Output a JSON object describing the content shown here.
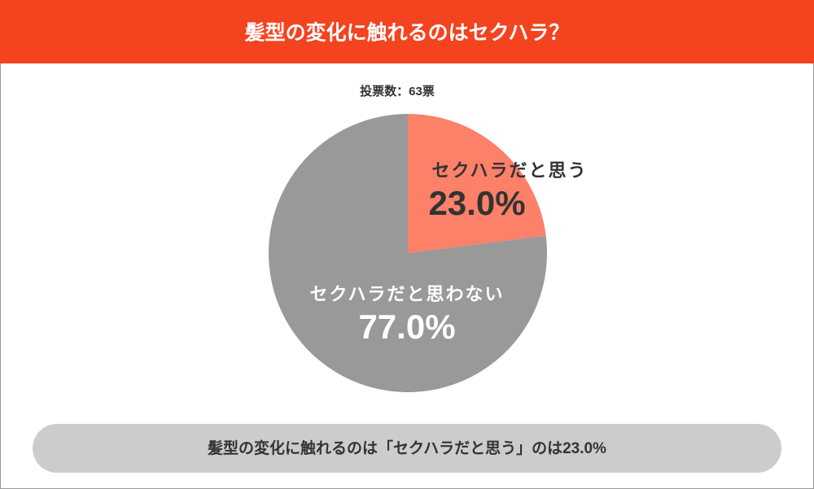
{
  "chart_data": {
    "type": "pie",
    "title": "髪型の変化に触れるのはセクハラ？",
    "subtitle": "投票数：63票",
    "categories": [
      "セクハラだと思う",
      "セクハラだと思わない"
    ],
    "values": [
      23.0,
      77.0
    ],
    "value_labels": [
      "23.0%",
      "77.0%"
    ],
    "colors": [
      "#fd8068",
      "#999999"
    ],
    "footer": "髪型の変化に触れるのは「セクハラだと思う」のは23.0%"
  }
}
